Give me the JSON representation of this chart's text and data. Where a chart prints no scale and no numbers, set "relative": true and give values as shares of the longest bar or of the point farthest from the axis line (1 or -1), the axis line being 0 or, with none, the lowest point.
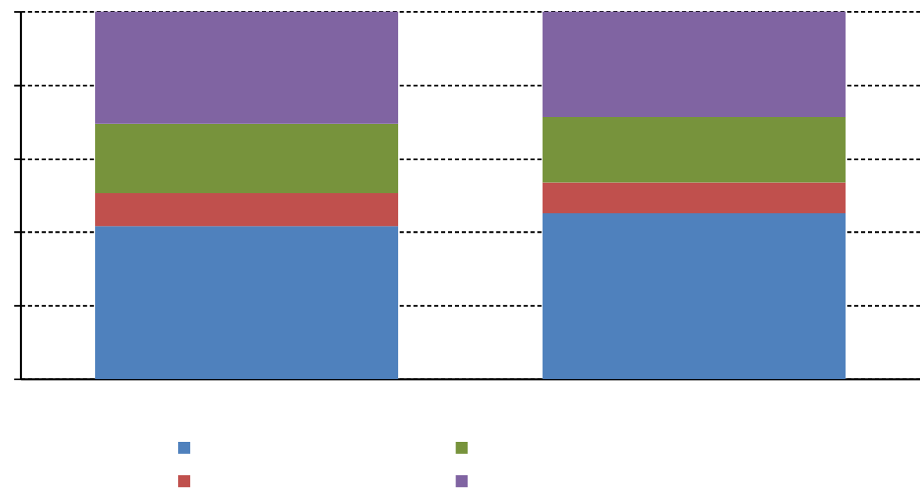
{
  "chart_data": {
    "type": "bar",
    "stacked": true,
    "relative": true,
    "categories": [
      null,
      null
    ],
    "series": [
      {
        "color": "#4f81bd",
        "values": [
          0.416,
          0.451
        ]
      },
      {
        "color": "#c0504d",
        "values": [
          0.09,
          0.084
        ]
      },
      {
        "color": "#77933c",
        "values": [
          0.189,
          0.178
        ]
      },
      {
        "color": "#8064a2",
        "values": [
          0.305,
          0.287
        ]
      }
    ],
    "grid": "y"
  }
}
